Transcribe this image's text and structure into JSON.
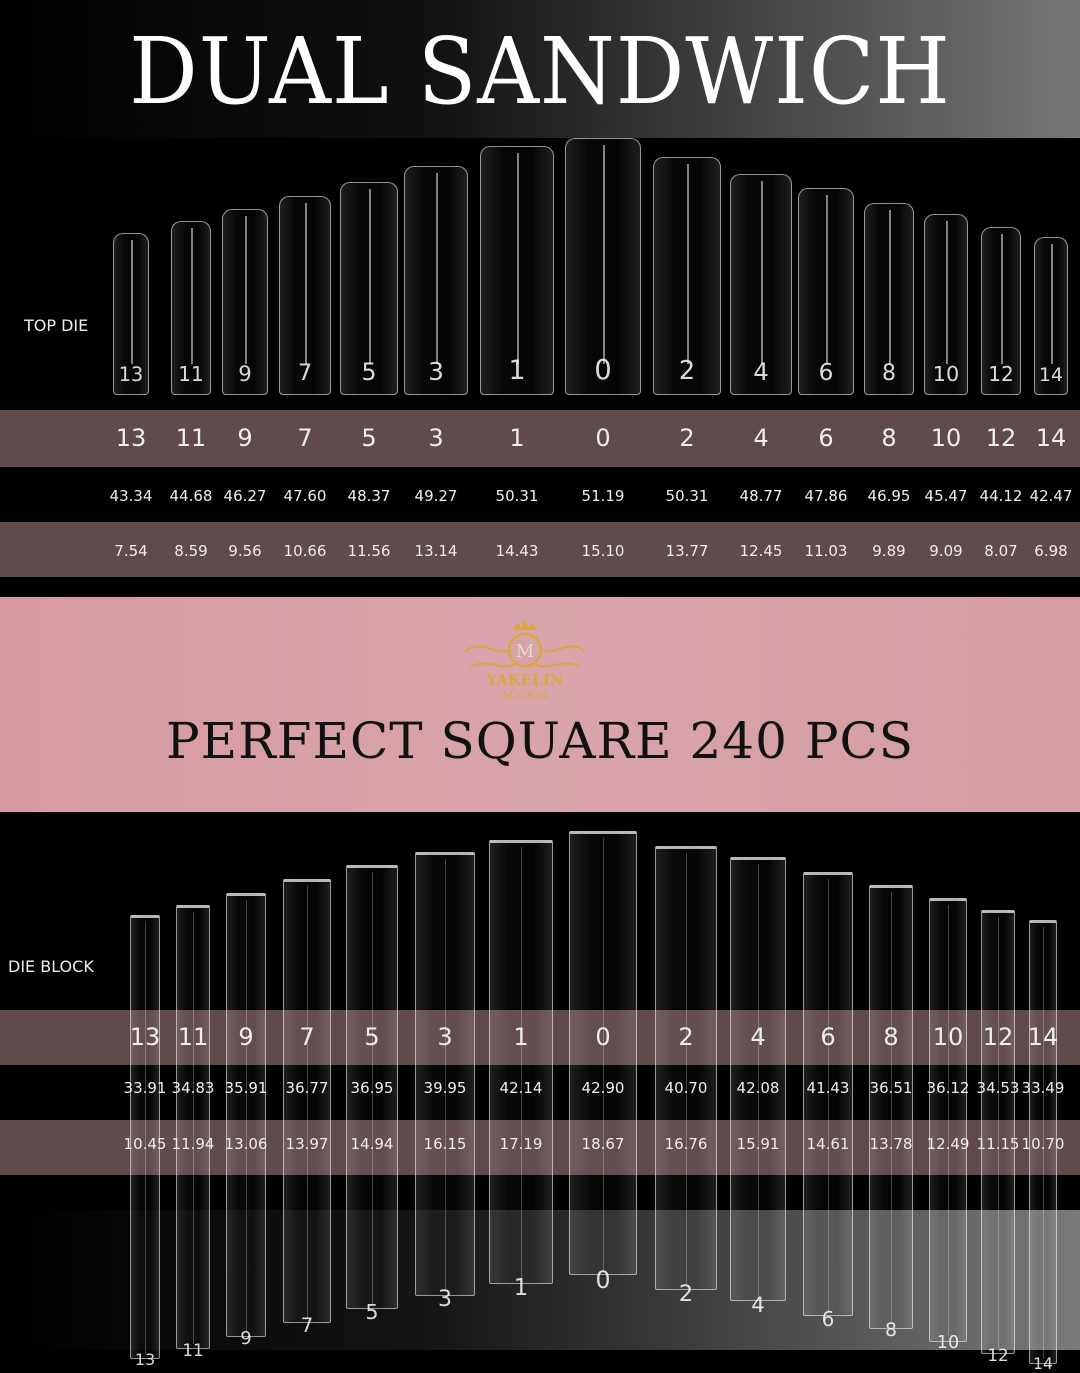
{
  "title": "DUAL SANDWICH",
  "subtitle": "PERFECT SQUARE   240 PCS",
  "logo_text": "YAKELIN ACOSTA",
  "colors": {
    "pink_band": "#d8a0a7",
    "mauve_row": "#5f4a4c",
    "background": "#000000",
    "logo_gold": "#d4a23c"
  },
  "top_die": {
    "label": "TOP DIE",
    "sizes": [
      "13",
      "11",
      "9",
      "7",
      "5",
      "3",
      "1",
      "0",
      "2",
      "4",
      "6",
      "8",
      "10",
      "12",
      "14"
    ],
    "row1": [
      "43.34",
      "44.68",
      "46.27",
      "47.60",
      "48.37",
      "49.27",
      "50.31",
      "51.19",
      "50.31",
      "48.77",
      "47.86",
      "46.95",
      "45.47",
      "44.12",
      "42.47"
    ],
    "row2": [
      "7.54",
      "8.59",
      "9.56",
      "10.66",
      "11.56",
      "13.14",
      "14.43",
      "15.10",
      "13.77",
      "12.45",
      "11.03",
      "9.89",
      "9.09",
      "8.07",
      "6.98"
    ]
  },
  "die_block": {
    "label": "DIE BLOCK",
    "sizes": [
      "13",
      "11",
      "9",
      "7",
      "5",
      "3",
      "1",
      "0",
      "2",
      "4",
      "6",
      "8",
      "10",
      "12",
      "14"
    ],
    "row1": [
      "33.91",
      "34.83",
      "35.91",
      "36.77",
      "36.95",
      "39.95",
      "42.14",
      "42.90",
      "40.70",
      "42.08",
      "41.43",
      "36.51",
      "36.12",
      "34.53",
      "33.49"
    ],
    "row2": [
      "10.45",
      "11.94",
      "13.06",
      "13.97",
      "14.94",
      "16.15",
      "17.19",
      "18.67",
      "16.76",
      "15.91",
      "14.61",
      "13.78",
      "12.49",
      "11.15",
      "10.70"
    ]
  }
}
